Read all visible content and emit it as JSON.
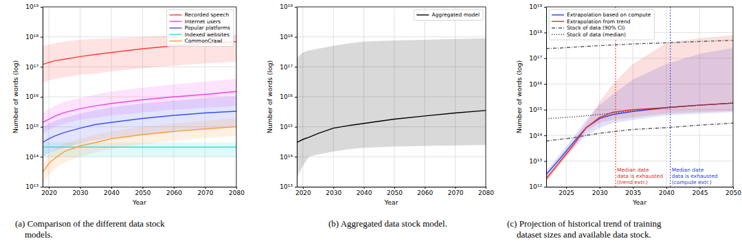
{
  "chart_data": [
    {
      "type": "line",
      "caption": [
        "(a) Comparison of the different data stock",
        "models."
      ],
      "x_label": "Year",
      "y_label": "Number of words (log)",
      "log": "y",
      "grid": true,
      "legend": "upper right",
      "xlim": [
        2018,
        2080
      ],
      "ylim": [
        10000000000000.0,
        1e+19
      ],
      "xticks": [
        2020,
        2030,
        2040,
        2050,
        2060,
        2070,
        2080
      ],
      "yticks": [
        {
          "value": 10000000000000.0,
          "label": "10¹³"
        },
        {
          "value": 100000000000000.0,
          "label": "10¹⁴"
        },
        {
          "value": 1000000000000000.0,
          "label": "10¹⁵"
        },
        {
          "value": 1e+16,
          "label": "10¹⁶"
        },
        {
          "value": 1e+17,
          "label": "10¹⁷"
        },
        {
          "value": 1e+18,
          "label": "10¹⁸"
        },
        {
          "value": 1e+19,
          "label": "10¹⁹"
        }
      ],
      "x": [
        2018,
        2020,
        2022,
        2025,
        2030,
        2035,
        2040,
        2050,
        2060,
        2070,
        2080
      ],
      "series": [
        {
          "name": "Recorded speech",
          "color": "#ff3b3b",
          "values": [
            1.2e+17,
            1.4e+17,
            1.6e+17,
            1.8e+17,
            2.2e+17,
            2.6e+17,
            3e+17,
            4e+17,
            5e+17,
            6e+17,
            7e+17
          ],
          "lower": [
            3e+16,
            3.5e+16,
            4e+16,
            4.5e+16,
            5.5e+16,
            6e+16,
            7e+16,
            9e+16,
            1.1e+17,
            1.3e+17,
            1.5e+17
          ],
          "upper": [
            5e+17,
            5.5e+17,
            6e+17,
            7e+17,
            8e+17,
            8.5e+17,
            9e+17,
            1e+18,
            1.1e+18,
            1.15e+18,
            1.2e+18
          ]
        },
        {
          "name": "Internet users",
          "color": "#f040f0",
          "values": [
            1400000000000000.0,
            1800000000000000.0,
            2300000000000000.0,
            3000000000000000.0,
            4000000000000000.0,
            5000000000000000.0,
            6000000000000000.0,
            8000000000000000.0,
            1e+16,
            1.2e+16,
            1.5e+16
          ],
          "lower": [
            600000000000000.0,
            800000000000000.0,
            1000000000000000.0,
            1300000000000000.0,
            1700000000000000.0,
            2000000000000000.0,
            2400000000000000.0,
            3000000000000000.0,
            3700000000000000.0,
            4300000000000000.0,
            5000000000000000.0
          ],
          "upper": [
            3000000000000000.0,
            4000000000000000.0,
            5000000000000000.0,
            7000000000000000.0,
            9000000000000000.0,
            1.2e+16,
            1.5e+16,
            2e+16,
            2.6e+16,
            3.2e+16,
            4e+16
          ]
        },
        {
          "name": "Popular platforms",
          "color": "#3a4ff0",
          "values": [
            300000000000000.0,
            400000000000000.0,
            500000000000000.0,
            650000000000000.0,
            900000000000000.0,
            1200000000000000.0,
            1400000000000000.0,
            1900000000000000.0,
            2400000000000000.0,
            2900000000000000.0,
            3300000000000000.0
          ],
          "lower": [
            100000000000000.0,
            130000000000000.0,
            160000000000000.0,
            200000000000000.0,
            280000000000000.0,
            350000000000000.0,
            430000000000000.0,
            550000000000000.0,
            700000000000000.0,
            850000000000000.0,
            1000000000000000.0
          ],
          "upper": [
            1000000000000000.0,
            1300000000000000.0,
            1600000000000000.0,
            2000000000000000.0,
            2800000000000000.0,
            3600000000000000.0,
            4500000000000000.0,
            6000000000000000.0,
            7500000000000000.0,
            9000000000000000.0,
            1e+16
          ]
        },
        {
          "name": "Indexed websites",
          "color": "#30e0e0",
          "values": [
            210000000000000.0,
            210000000000000.0,
            210000000000000.0,
            210000000000000.0,
            210000000000000.0,
            210000000000000.0,
            210000000000000.0,
            210000000000000.0,
            210000000000000.0,
            210000000000000.0,
            210000000000000.0
          ],
          "lower": [
            100000000000000.0,
            100000000000000.0,
            100000000000000.0,
            100000000000000.0,
            100000000000000.0,
            100000000000000.0,
            100000000000000.0,
            100000000000000.0,
            100000000000000.0,
            100000000000000.0,
            100000000000000.0
          ],
          "upper": [
            300000000000000.0,
            300000000000000.0,
            300000000000000.0,
            300000000000000.0,
            300000000000000.0,
            300000000000000.0,
            300000000000000.0,
            300000000000000.0,
            300000000000000.0,
            300000000000000.0,
            300000000000000.0
          ]
        },
        {
          "name": "CommonCrawl",
          "color": "#ff9a3c",
          "values": [
            30000000000000.0,
            60000000000000.0,
            90000000000000.0,
            150000000000000.0,
            230000000000000.0,
            300000000000000.0,
            400000000000000.0,
            550000000000000.0,
            700000000000000.0,
            850000000000000.0,
            1000000000000000.0
          ],
          "lower": [
            12000000000000.0,
            25000000000000.0,
            40000000000000.0,
            65000000000000.0,
            100000000000000.0,
            140000000000000.0,
            180000000000000.0,
            260000000000000.0,
            340000000000000.0,
            420000000000000.0,
            500000000000000.0
          ],
          "upper": [
            60000000000000.0,
            120000000000000.0,
            180000000000000.0,
            280000000000000.0,
            400000000000000.0,
            550000000000000.0,
            700000000000000.0,
            1000000000000000.0,
            1300000000000000.0,
            1600000000000000.0,
            2000000000000000.0
          ]
        }
      ]
    },
    {
      "type": "line",
      "caption": [
        "(b) Aggregated data stock model."
      ],
      "x_label": "Year",
      "y_label": "Number of words (log)",
      "log": "y",
      "grid": true,
      "legend": "upper right",
      "xlim": [
        2018,
        2080
      ],
      "ylim": [
        10000000000000.0,
        1e+19
      ],
      "xticks": [
        2020,
        2030,
        2040,
        2050,
        2060,
        2070,
        2080
      ],
      "yticks": [
        {
          "value": 10000000000000.0,
          "label": "10¹³"
        },
        {
          "value": 100000000000000.0,
          "label": "10¹⁴"
        },
        {
          "value": 1000000000000000.0,
          "label": "10¹⁵"
        },
        {
          "value": 1e+16,
          "label": "10¹⁶"
        },
        {
          "value": 1e+17,
          "label": "10¹⁷"
        },
        {
          "value": 1e+18,
          "label": "10¹⁸"
        },
        {
          "value": 1e+19,
          "label": "10¹⁹"
        }
      ],
      "x": [
        2018,
        2020,
        2022,
        2025,
        2030,
        2035,
        2040,
        2050,
        2060,
        2070,
        2080
      ],
      "series": [
        {
          "name": "Aggregated model",
          "color": "#000000",
          "values": [
            300000000000000.0,
            380000000000000.0,
            450000000000000.0,
            600000000000000.0,
            900000000000000.0,
            1100000000000000.0,
            1300000000000000.0,
            1800000000000000.0,
            2300000000000000.0,
            2900000000000000.0,
            3500000000000000.0
          ],
          "lower": [
            20000000000000.0,
            50000000000000.0,
            100000000000000.0,
            120000000000000.0,
            150000000000000.0,
            180000000000000.0,
            200000000000000.0,
            220000000000000.0,
            230000000000000.0,
            240000000000000.0,
            250000000000000.0
          ],
          "upper": [
            2e+17,
            3e+17,
            3.5e+17,
            4e+17,
            5e+17,
            6e+17,
            7e+17,
            7.5e+17,
            8e+17,
            8.5e+17,
            9e+17
          ]
        }
      ]
    },
    {
      "type": "line",
      "caption": [
        "(c) Projection of historical trend of training",
        "dataset sizes and available data stock."
      ],
      "x_label": "Year",
      "y_label": "Number of words (log)",
      "log": "y",
      "grid": true,
      "legend": "upper left",
      "xlim": [
        2022,
        2050
      ],
      "ylim": [
        1000000000000.0,
        1e+19
      ],
      "xticks": [
        2025,
        2030,
        2035,
        2040,
        2045,
        2050
      ],
      "yticks": [
        {
          "value": 1000000000000.0,
          "label": "10¹²"
        },
        {
          "value": 10000000000000.0,
          "label": "10¹³"
        },
        {
          "value": 100000000000000.0,
          "label": "10¹⁴"
        },
        {
          "value": 1000000000000000.0,
          "label": "10¹⁵"
        },
        {
          "value": 1e+16,
          "label": "10¹⁶"
        },
        {
          "value": 1e+17,
          "label": "10¹⁷"
        },
        {
          "value": 1e+18,
          "label": "10¹⁸"
        },
        {
          "value": 1e+19,
          "label": "10¹⁹"
        }
      ],
      "x": [
        2022,
        2024,
        2026,
        2028,
        2030,
        2032,
        2035,
        2040,
        2045,
        2050
      ],
      "series": [
        {
          "name": "Extrapolation based on compute",
          "color": "#2b3fe8",
          "values": [
            3000000000000.0,
            12000000000000.0,
            50000000000000.0,
            200000000000000.0,
            450000000000000.0,
            650000000000000.0,
            850000000000000.0,
            1200000000000000.0,
            1500000000000000.0,
            1800000000000000.0
          ],
          "lower": [
            2000000000000.0,
            8000000000000.0,
            30000000000000.0,
            100000000000000.0,
            200000000000000.0,
            300000000000000.0,
            400000000000000.0,
            600000000000000.0,
            700000000000000.0,
            800000000000000.0
          ],
          "upper": [
            4000000000000.0,
            18000000000000.0,
            80000000000000.0,
            400000000000000.0,
            1500000000000000.0,
            4000000000000000.0,
            1.5e+16,
            6e+16,
            1.5e+17,
            2.5e+17
          ]
        },
        {
          "name": "Extrapolation from trend",
          "color": "#e82b2b",
          "values": [
            2000000000000.0,
            9000000000000.0,
            40000000000000.0,
            200000000000000.0,
            500000000000000.0,
            800000000000000.0,
            1000000000000000.0,
            1200000000000000.0,
            1500000000000000.0,
            1800000000000000.0
          ],
          "lower": [
            1500000000000.0,
            7000000000000.0,
            30000000000000.0,
            150000000000000.0,
            300000000000000.0,
            400000000000000.0,
            500000000000000.0,
            700000000000000.0,
            800000000000000.0,
            900000000000000.0
          ],
          "upper": [
            3000000000000.0,
            13000000000000.0,
            60000000000000.0,
            300000000000000.0,
            2000000000000000.0,
            1e+16,
            6e+16,
            4e+17,
            6e+17,
            8e+17
          ]
        },
        {
          "name": "Stock of data (90% CI)",
          "color": "#555555",
          "line_style": "dashdot",
          "lower": [
            60000000000000.0,
            70000000000000.0,
            80000000000000.0,
            100000000000000.0,
            120000000000000.0,
            140000000000000.0,
            170000000000000.0,
            200000000000000.0,
            250000000000000.0,
            300000000000000.0
          ],
          "upper": [
            2.4e+17,
            2.5e+17,
            2.7e+17,
            2.9e+17,
            3.1e+17,
            3.3e+17,
            3.6e+17,
            4e+17,
            4.5e+17,
            5e+17
          ]
        },
        {
          "name": "Stock of data (median)",
          "color": "#333333",
          "line_style": "dotted",
          "values": [
            450000000000000.0,
            480000000000000.0,
            520000000000000.0,
            580000000000000.0,
            650000000000000.0,
            750000000000000.0,
            900000000000000.0,
            1200000000000000.0,
            1500000000000000.0,
            1800000000000000.0
          ]
        }
      ],
      "annotations": [
        {
          "x": 2032.4,
          "text": [
            "Median date",
            "data is exhausted",
            "(trend extr.)"
          ],
          "color": "#e82b2b"
        },
        {
          "x": 2040.6,
          "text": [
            "Median date",
            "data is exhausted",
            "(compute extr.)"
          ],
          "color": "#2b3fe8"
        }
      ]
    }
  ]
}
